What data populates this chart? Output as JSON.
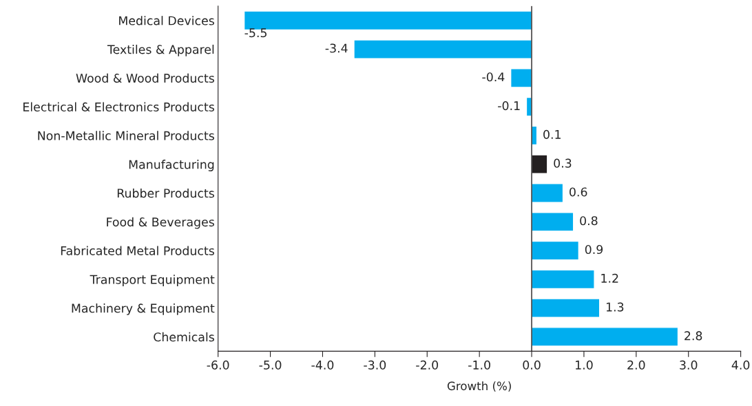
{
  "chart_data": {
    "type": "bar",
    "orientation": "horizontal",
    "xlabel": "Growth (%)",
    "categories": [
      "Medical Devices",
      "Textiles & Apparel",
      "Wood & Wood Products",
      "Electrical & Electronics Products",
      "Non-Metallic Mineral Products",
      "Manufacturing",
      "Rubber Products",
      "Food & Beverages",
      "Fabricated Metal Products",
      "Transport Equipment",
      "Machinery & Equipment",
      "Chemicals"
    ],
    "values": [
      -5.5,
      -3.4,
      -0.4,
      -0.1,
      0.1,
      0.3,
      0.6,
      0.8,
      0.9,
      1.2,
      1.3,
      2.8
    ],
    "colors": [
      "#00aeef",
      "#00aeef",
      "#00aeef",
      "#00aeef",
      "#00aeef",
      "#231f20",
      "#00aeef",
      "#00aeef",
      "#00aeef",
      "#00aeef",
      "#00aeef",
      "#00aeef"
    ],
    "xlim": [
      -6,
      4
    ],
    "xticks": [
      {
        "value": -6,
        "label": "-6.0"
      },
      {
        "value": -5,
        "label": "-5.0"
      },
      {
        "value": -4,
        "label": "-4.0"
      },
      {
        "value": -3,
        "label": "-3.0"
      },
      {
        "value": -2,
        "label": "-2.0"
      },
      {
        "value": -1,
        "label": "-1.0"
      },
      {
        "value": 0,
        "label": "0.0"
      },
      {
        "value": 1,
        "label": "1.0"
      },
      {
        "value": 2,
        "label": "2.0"
      },
      {
        "value": 3,
        "label": "3.0"
      },
      {
        "value": 4,
        "label": "4.0"
      }
    ],
    "ref_lines": [
      {
        "axis": "x",
        "value": 0,
        "color": "#231f20"
      }
    ],
    "data_labels": true,
    "grid": false,
    "legend": false
  }
}
